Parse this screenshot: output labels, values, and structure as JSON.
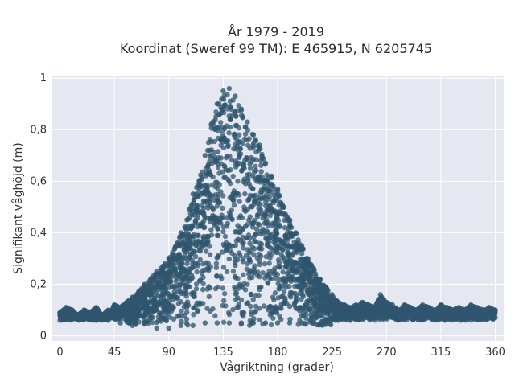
{
  "chart_data": {
    "type": "scatter",
    "title": "År 1979 - 2019",
    "subtitle": "Koordinat (Sweref 99 TM): E 465915, N 6205745",
    "xlabel": "Vågriktning (grader)",
    "ylabel": "Signifikant våghöjd (m)",
    "xlim": [
      -7,
      367
    ],
    "ylim": [
      -0.02,
      1.01
    ],
    "x_ticks": [
      0,
      45,
      90,
      135,
      180,
      225,
      270,
      315,
      360
    ],
    "x_tick_labels": [
      "0",
      "45",
      "90",
      "135",
      "180",
      "225",
      "270",
      "315",
      "360"
    ],
    "y_ticks": [
      0,
      0.2,
      0.4,
      0.6,
      0.8,
      1
    ],
    "y_tick_labels": [
      "0",
      "0,2",
      "0,4",
      "0,6",
      "0,8",
      "1"
    ],
    "grid": true,
    "colors": {
      "marker": "#2f566e",
      "plot_bg": "#e5e8f0",
      "grid": "#ffffff"
    },
    "series": [
      {
        "points": [
          [
            0,
            0.09
          ],
          [
            5,
            0.11
          ],
          [
            10,
            0.1
          ],
          [
            15,
            0.08
          ],
          [
            20,
            0.1
          ],
          [
            25,
            0.09
          ],
          [
            30,
            0.11
          ],
          [
            35,
            0.08
          ],
          [
            40,
            0.1
          ],
          [
            45,
            0.12
          ],
          [
            50,
            0.11
          ],
          [
            55,
            0.13
          ],
          [
            60,
            0.15
          ],
          [
            65,
            0.17
          ],
          [
            70,
            0.2
          ],
          [
            75,
            0.22
          ],
          [
            80,
            0.25
          ],
          [
            85,
            0.27
          ],
          [
            90,
            0.3
          ],
          [
            95,
            0.34
          ],
          [
            100,
            0.4
          ],
          [
            105,
            0.45
          ],
          [
            110,
            0.55
          ],
          [
            115,
            0.6
          ],
          [
            120,
            0.7
          ],
          [
            125,
            0.82
          ],
          [
            130,
            0.9
          ],
          [
            135,
            0.95
          ],
          [
            140,
            0.96
          ],
          [
            145,
            0.93
          ],
          [
            150,
            0.88
          ],
          [
            155,
            0.83
          ],
          [
            160,
            0.78
          ],
          [
            165,
            0.74
          ],
          [
            170,
            0.67
          ],
          [
            175,
            0.62
          ],
          [
            180,
            0.57
          ],
          [
            185,
            0.5
          ],
          [
            190,
            0.45
          ],
          [
            195,
            0.4
          ],
          [
            200,
            0.35
          ],
          [
            205,
            0.3
          ],
          [
            210,
            0.26
          ],
          [
            215,
            0.22
          ],
          [
            220,
            0.19
          ],
          [
            225,
            0.16
          ],
          [
            230,
            0.13
          ],
          [
            235,
            0.12
          ],
          [
            240,
            0.11
          ],
          [
            245,
            0.12
          ],
          [
            250,
            0.13
          ],
          [
            255,
            0.12
          ],
          [
            260,
            0.11
          ],
          [
            265,
            0.16
          ],
          [
            270,
            0.13
          ],
          [
            275,
            0.12
          ],
          [
            280,
            0.1
          ],
          [
            285,
            0.12
          ],
          [
            290,
            0.11
          ],
          [
            295,
            0.1
          ],
          [
            300,
            0.12
          ],
          [
            305,
            0.11
          ],
          [
            310,
            0.1
          ],
          [
            315,
            0.12
          ],
          [
            320,
            0.11
          ],
          [
            325,
            0.1
          ],
          [
            330,
            0.11
          ],
          [
            335,
            0.1
          ],
          [
            340,
            0.12
          ],
          [
            345,
            0.11
          ],
          [
            350,
            0.1
          ],
          [
            355,
            0.11
          ],
          [
            360,
            0.1
          ],
          [
            60,
            0.04
          ],
          [
            70,
            0.05
          ],
          [
            80,
            0.03
          ],
          [
            90,
            0.03
          ],
          [
            100,
            0.04
          ],
          [
            110,
            0.04
          ],
          [
            120,
            0.05
          ],
          [
            130,
            0.05
          ],
          [
            140,
            0.05
          ],
          [
            150,
            0.05
          ],
          [
            160,
            0.05
          ],
          [
            170,
            0.05
          ],
          [
            180,
            0.05
          ],
          [
            190,
            0.05
          ],
          [
            200,
            0.05
          ],
          [
            210,
            0.05
          ],
          [
            220,
            0.05
          ],
          [
            230,
            0.06
          ],
          [
            240,
            0.06
          ],
          [
            250,
            0.07
          ],
          [
            260,
            0.07
          ],
          [
            270,
            0.07
          ],
          [
            280,
            0.07
          ],
          [
            290,
            0.07
          ],
          [
            300,
            0.07
          ],
          [
            310,
            0.07
          ],
          [
            320,
            0.07
          ],
          [
            330,
            0.07
          ],
          [
            340,
            0.07
          ],
          [
            350,
            0.07
          ],
          [
            360,
            0.07
          ],
          [
            0,
            0.06
          ],
          [
            10,
            0.07
          ],
          [
            20,
            0.07
          ],
          [
            30,
            0.06
          ],
          [
            40,
            0.06
          ],
          [
            50,
            0.05
          ]
        ]
      }
    ]
  }
}
